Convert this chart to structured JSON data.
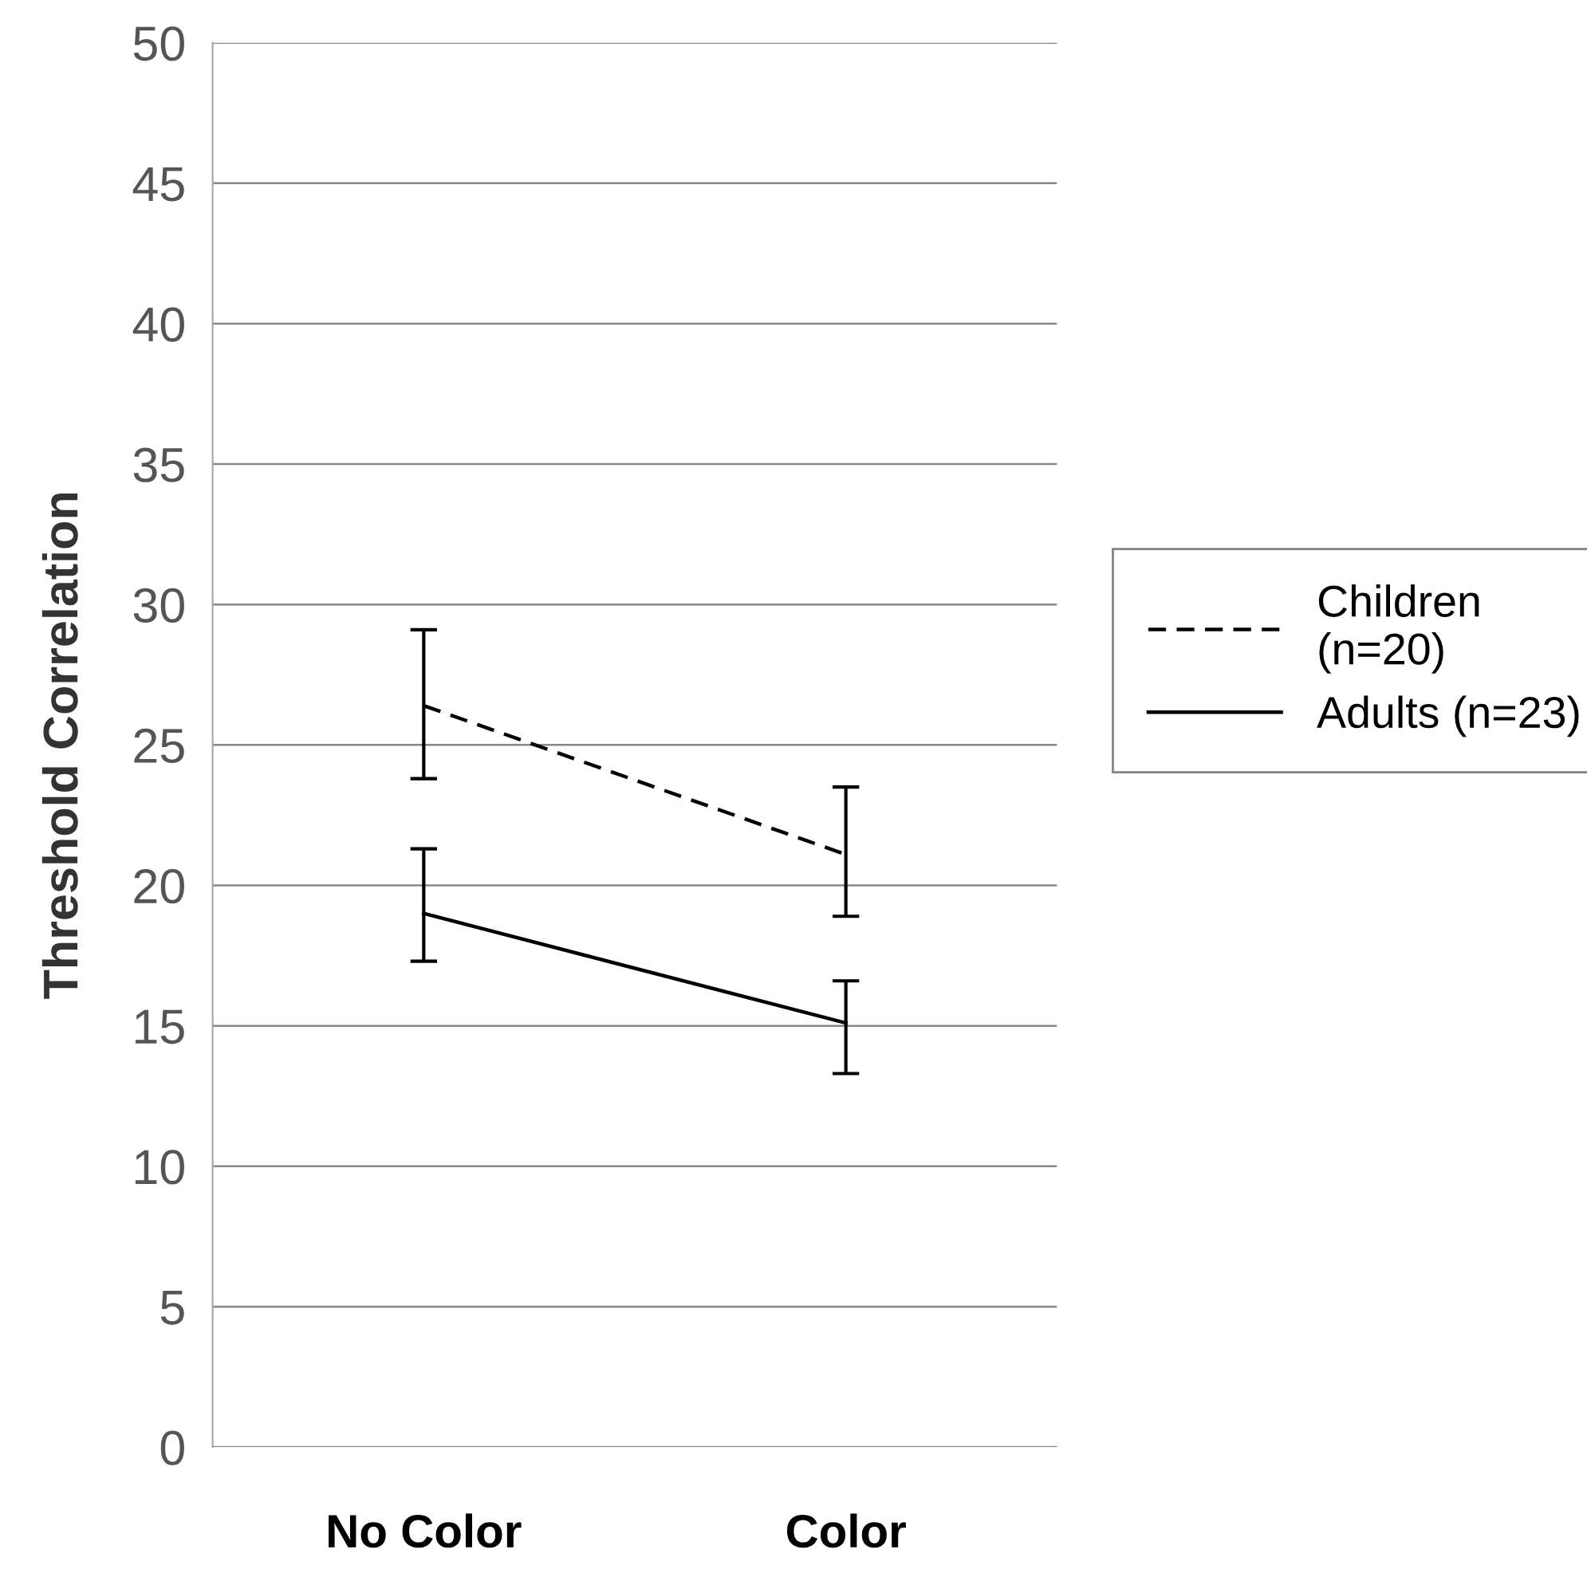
{
  "chart_data": {
    "type": "line",
    "ylabel": "Threshold Correlation",
    "categories": [
      "No Color",
      "Color"
    ],
    "series": [
      {
        "name": "Children\n(n=20)",
        "color": "#000000",
        "values": [
          26.4,
          21.1
        ],
        "errors": [
          [
            23.8,
            29.1
          ],
          [
            18.9,
            23.5
          ]
        ],
        "line_style": "dashed"
      },
      {
        "name": "Adults (n=23)",
        "color": "#000000",
        "values": [
          19.0,
          15.1
        ],
        "errors": [
          [
            17.3,
            21.3
          ],
          [
            13.3,
            16.6
          ]
        ],
        "line_style": "solid"
      }
    ],
    "ylim": [
      0,
      50
    ],
    "yticks": [
      0,
      5,
      10,
      15,
      20,
      25,
      30,
      35,
      40,
      45,
      50
    ],
    "grid": "y",
    "legend": "right",
    "marker": "none"
  }
}
